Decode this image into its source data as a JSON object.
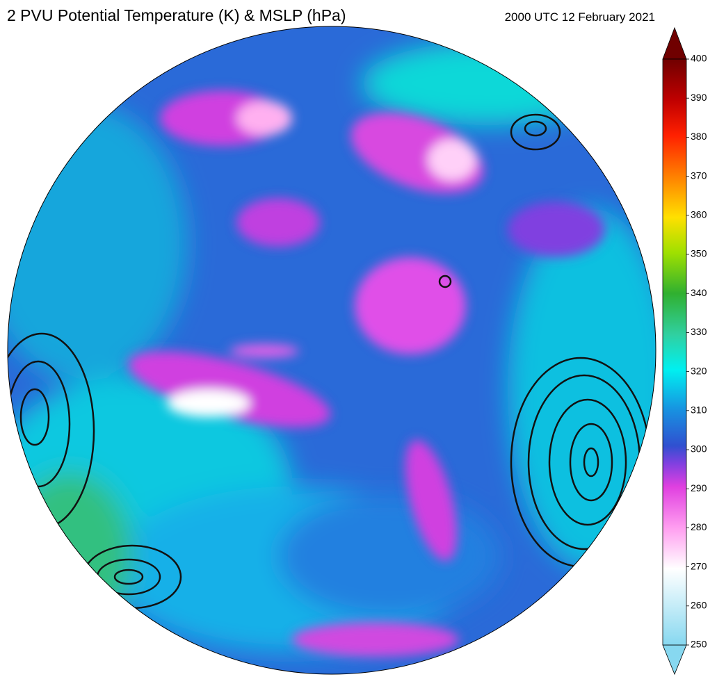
{
  "header": {
    "title": "2 PVU Potential Temperature (K) & MSLP (hPa)",
    "timestamp": "2000 UTC 12 February 2021"
  },
  "colorbar": {
    "ticks": [
      250,
      260,
      270,
      280,
      290,
      300,
      310,
      320,
      330,
      340,
      350,
      360,
      370,
      380,
      390,
      400
    ]
  }
}
